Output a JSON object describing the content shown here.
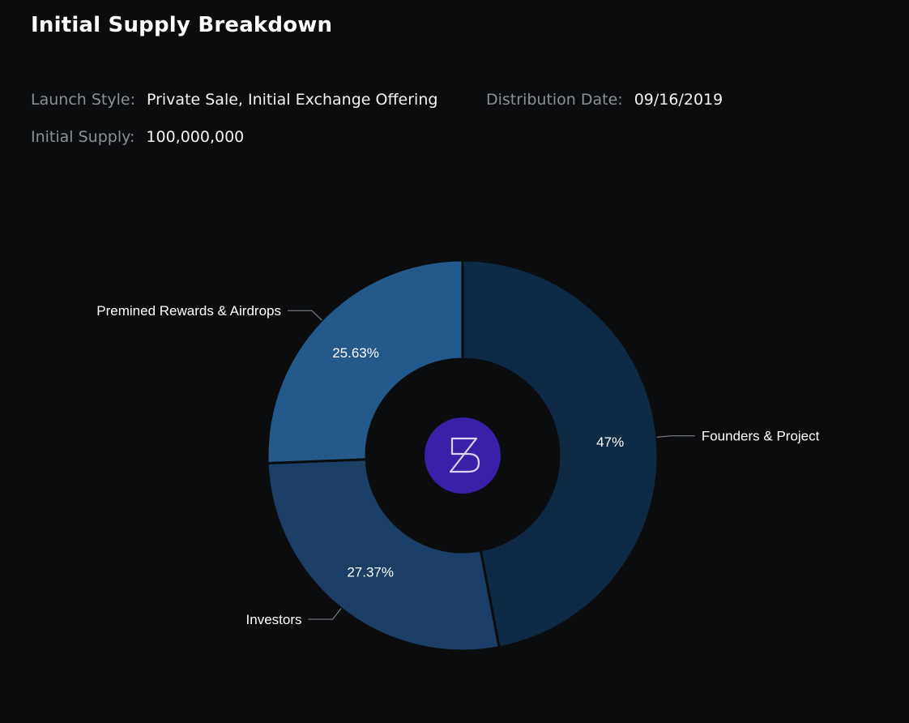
{
  "header": {
    "title": "Initial Supply Breakdown"
  },
  "info": {
    "launch_style_label": "Launch Style:",
    "launch_style_value": "Private Sale, Initial Exchange Offering",
    "distribution_date_label": "Distribution Date:",
    "distribution_date_value": "09/16/2019",
    "initial_supply_label": "Initial Supply:",
    "initial_supply_value": "100,000,000"
  },
  "logo": {
    "icon": "band-protocol-logo",
    "color": "#3a20a8"
  },
  "chart_data": {
    "type": "pie",
    "donut": true,
    "slices": [
      {
        "name": "Founders & Project",
        "value": 47,
        "label": "47%",
        "color": "#0f2a44"
      },
      {
        "name": "Investors",
        "value": 27.37,
        "label": "27.37%",
        "color": "#1b3f66"
      },
      {
        "name": "Premined Rewards & Airdrops",
        "value": 25.63,
        "label": "25.63%",
        "color": "#24598c"
      }
    ]
  }
}
